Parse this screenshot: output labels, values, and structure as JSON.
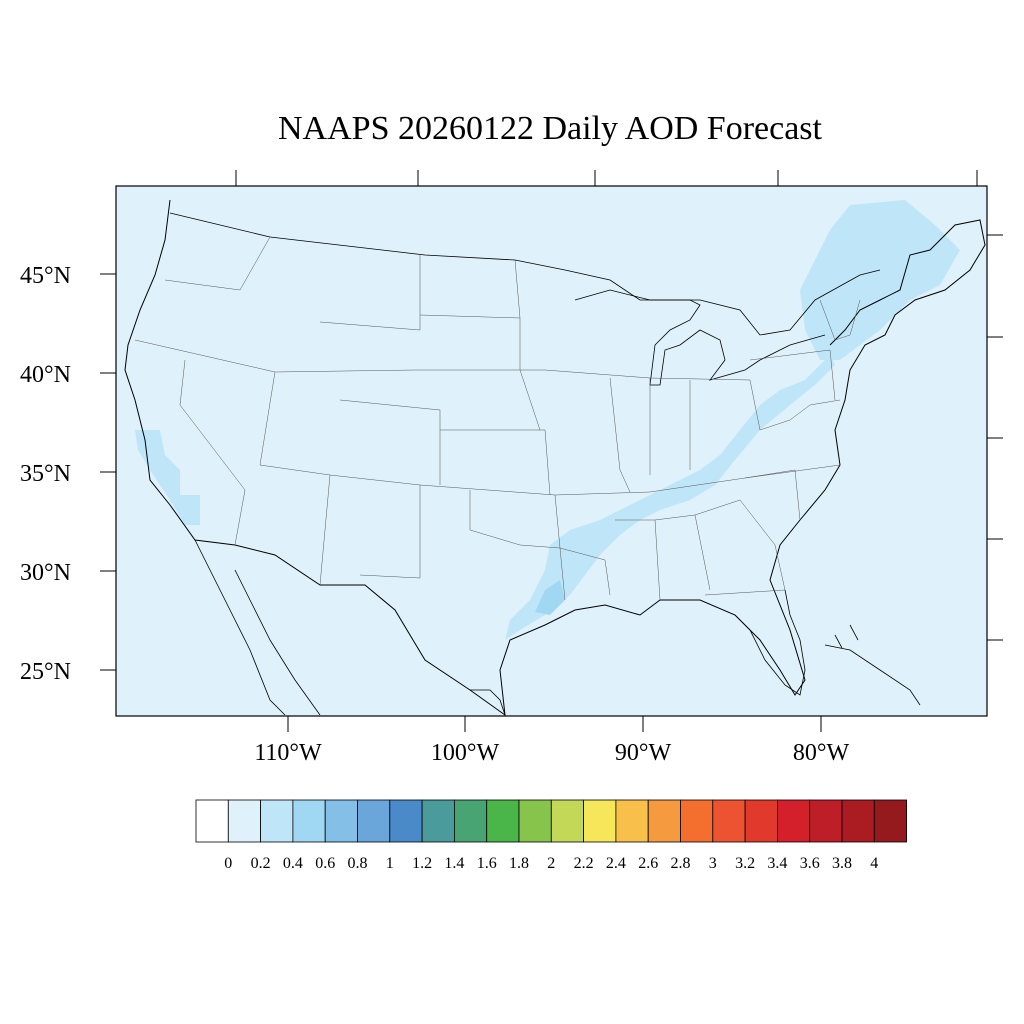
{
  "title": "NAAPS 20260122 Daily AOD Forecast",
  "map": {
    "background_color": "#dff1fa",
    "lat_labels": [
      "45°N",
      "40°N",
      "35°N",
      "30°N",
      "25°N"
    ],
    "lon_labels": [
      "110°W",
      "100°W",
      "90°W",
      "80°W"
    ],
    "aod_plumes": [
      {
        "region": "Northeast / New England",
        "level": "0.2–0.4"
      },
      {
        "region": "Ohio Valley",
        "level": "0.2–0.4"
      },
      {
        "region": "Lower Mississippi Valley / Texas Gulf Coast",
        "level": "0.2–0.6"
      },
      {
        "region": "Southern California coast",
        "level": "0.2–0.4"
      }
    ]
  },
  "legend": {
    "colors": [
      "#ffffff",
      "#dff1fa",
      "#bfe6f8",
      "#a0d8f3",
      "#83bfe6",
      "#6aa6da",
      "#4a8ac8",
      "#4a9c9c",
      "#48a472",
      "#4ab548",
      "#86c44c",
      "#c2d856",
      "#f5e65a",
      "#f8c04a",
      "#f59a3e",
      "#f46e2e",
      "#ed5330",
      "#e13a2c",
      "#d4202a",
      "#bd1e27",
      "#aa1b22",
      "#941a1e"
    ],
    "ticks": [
      "0",
      "0.2",
      "0.4",
      "0.6",
      "0.8",
      "1",
      "1.2",
      "1.4",
      "1.6",
      "1.8",
      "2",
      "2.2",
      "2.4",
      "2.6",
      "2.8",
      "3",
      "3.2",
      "3.4",
      "3.6",
      "3.8",
      "4"
    ]
  }
}
